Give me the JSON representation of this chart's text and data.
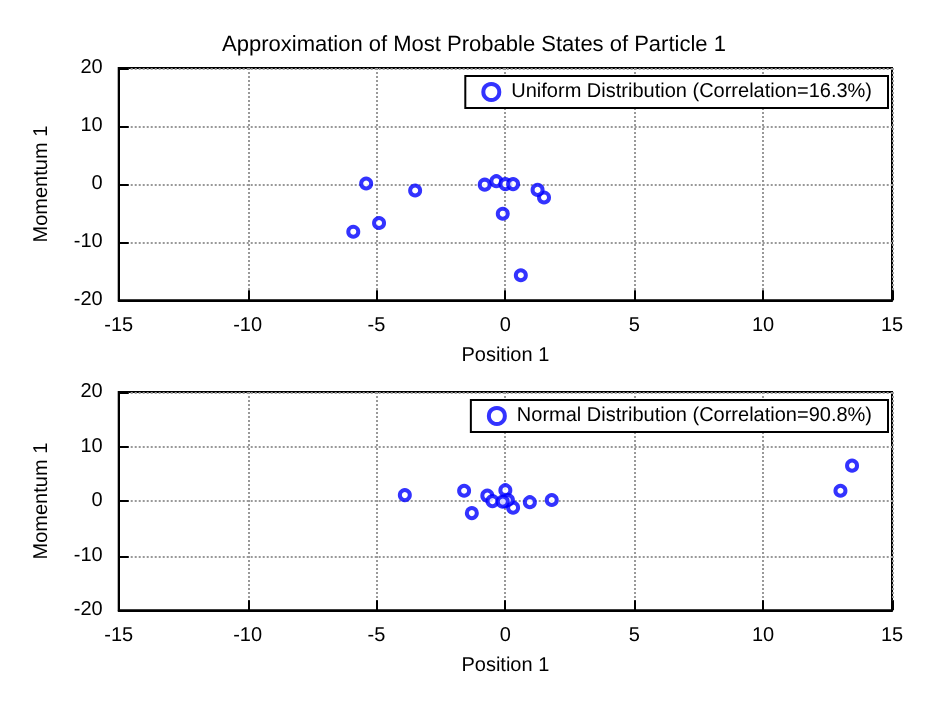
{
  "chart_data": [
    {
      "type": "scatter",
      "title": "Approximation of Most Probable States of Particle 1",
      "xlabel": "Position 1",
      "ylabel": "Momentum 1",
      "xlim": [
        -15,
        15
      ],
      "xticks": [
        -15,
        -10,
        -5,
        0,
        5,
        10,
        15
      ],
      "ylim": [
        -20,
        20
      ],
      "yticks": [
        -20,
        -10,
        0,
        10,
        20
      ],
      "grid": true,
      "legend": "top right",
      "marker": "circle",
      "series": [
        {
          "name": "Uniform Distribution (Correlation=16.3%)",
          "color": "#0000ff",
          "x": [
            0.6,
            -5.9,
            -4.9,
            -0.1,
            1.5,
            1.25,
            -3.5,
            -5.4,
            -0.8,
            -0.35,
            0,
            0.3
          ],
          "values": [
            -15.7,
            -8.2,
            -6.7,
            -5.1,
            -2.3,
            -1.0,
            -1.1,
            0.1,
            -0.1,
            0.5,
            0,
            0
          ]
        }
      ]
    },
    {
      "type": "scatter",
      "xlabel": "Position 1",
      "ylabel": "Momentum 1",
      "xlim": [
        -15,
        15
      ],
      "xticks": [
        -15,
        -10,
        -5,
        0,
        5,
        10,
        15
      ],
      "ylim": [
        -20,
        20
      ],
      "yticks": [
        -20,
        -10,
        0,
        10,
        20
      ],
      "grid": true,
      "legend": "top right",
      "marker": "circle",
      "series": [
        {
          "name": "Normal Distribution (Correlation=90.8%)",
          "color": "#0000ff",
          "x": [
            -3.9,
            -1.3,
            -1.6,
            -0.7,
            -0.5,
            0,
            0.3,
            0,
            0.95,
            1.8,
            13,
            13.45,
            0.1,
            -0.1
          ],
          "values": [
            1.1,
            -2.2,
            1.9,
            1.0,
            0,
            0,
            -1.2,
            2,
            -0.2,
            0.2,
            1.9,
            6.5,
            0.2,
            -0.1
          ]
        }
      ]
    }
  ]
}
